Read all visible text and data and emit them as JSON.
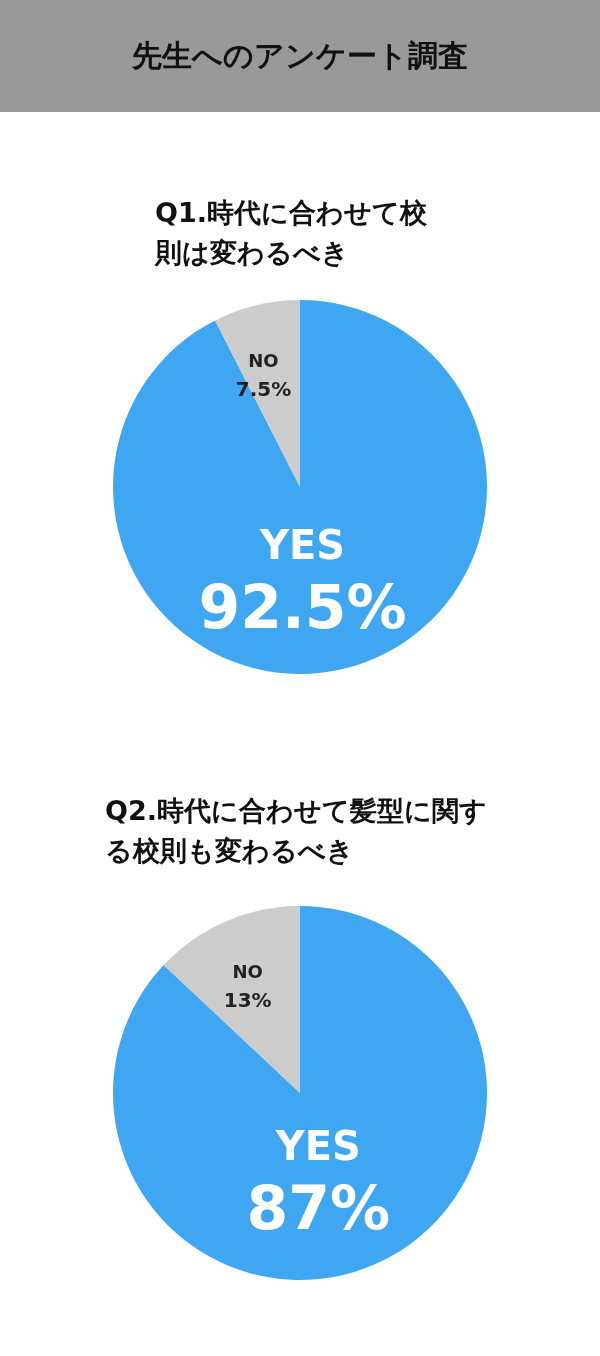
{
  "chart_data": [
    {
      "type": "pie",
      "title": "先生へのアンケート調査",
      "subtitle": "Q1.時代に合わせて校則は変わるべき",
      "categories": [
        "YES",
        "NO"
      ],
      "values": [
        92.5,
        7.5
      ],
      "value_labels": [
        "92.5%",
        "7.5%"
      ],
      "colors": [
        "#3fa7f2",
        "#cccccc"
      ]
    },
    {
      "type": "pie",
      "title": "Q2.時代に合わせて髪型に関する校則も変わるべき",
      "categories": [
        "YES",
        "NO"
      ],
      "values": [
        87,
        13
      ],
      "value_labels": [
        "87%",
        "13%"
      ],
      "colors": [
        "#3fa7f2",
        "#cccccc"
      ]
    }
  ]
}
